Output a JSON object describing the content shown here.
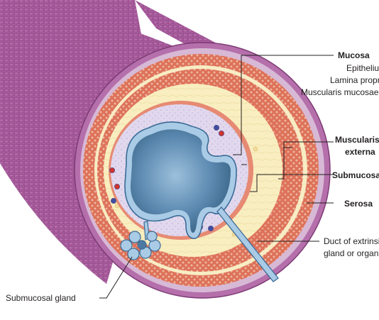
{
  "labels": {
    "mucosa": "Mucosa",
    "epithelium": "Epithelium",
    "lamina_propria": "Lamina propria",
    "muscularis_mucosae": "Muscularis mucosae",
    "muscularis_externa_1": "Muscularis",
    "muscularis_externa_2": "externa",
    "submucosa": "Submucosa",
    "serosa": "Serosa",
    "duct_1": "Duct of extrinsic",
    "duct_2": "gland or organ",
    "submucosal_gland": "Submucosal gland"
  },
  "colors": {
    "serosa_purple": "#a45a98",
    "muscle_red": "#df7158",
    "muscle_dots": "#f2b59d",
    "submucosa_yellow": "#f9eec0",
    "lamina_lilac": "#d9cfe9",
    "epithelium_blue": "#a9cbe6",
    "lumen_blue": "#4d7aa2",
    "leader_line": "#231f20"
  }
}
